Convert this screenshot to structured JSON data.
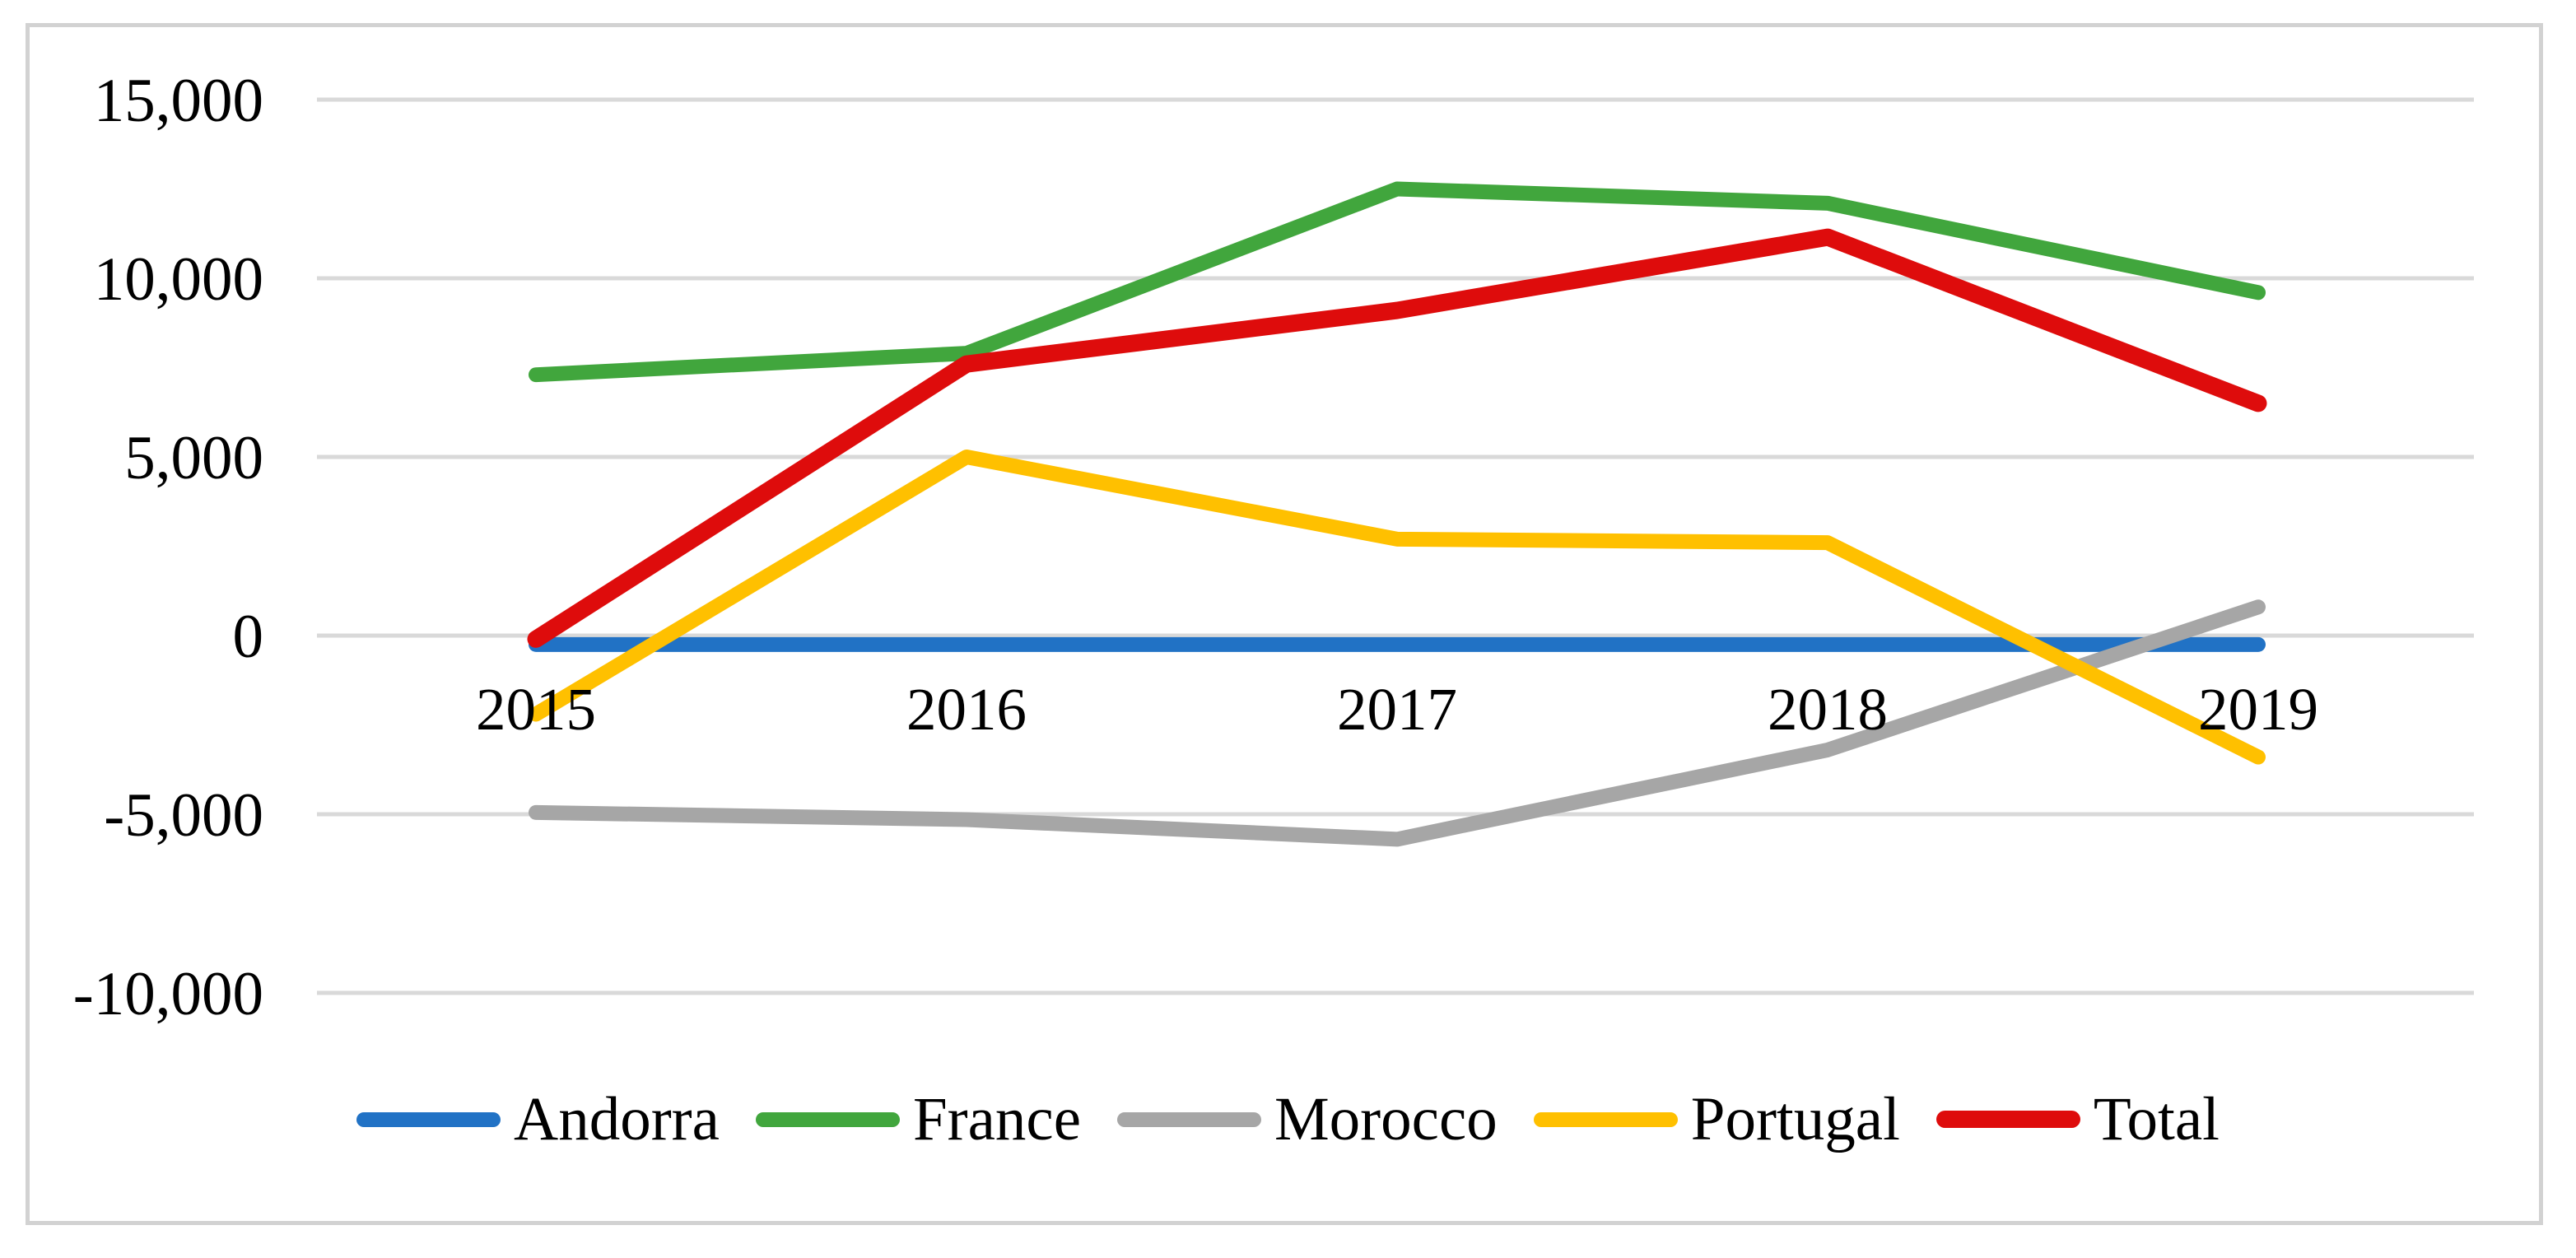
{
  "chart_data": {
    "type": "line",
    "title": "",
    "xlabel": "",
    "ylabel": "",
    "categories": [
      "2015",
      "2016",
      "2017",
      "2018",
      "2019"
    ],
    "series": [
      {
        "name": "Andorra",
        "color": "#2172c5",
        "values": [
          -250,
          -250,
          -250,
          -250,
          -250
        ]
      },
      {
        "name": "France",
        "color": "#41a63d",
        "values": [
          7300,
          7900,
          12500,
          12100,
          9600
        ]
      },
      {
        "name": "Morocco",
        "color": "#a6a6a6",
        "values": [
          -4950,
          -5150,
          -5700,
          -3200,
          800
        ]
      },
      {
        "name": "Portugal",
        "color": "#ffc000",
        "values": [
          -2200,
          5000,
          2700,
          2600,
          -3400
        ]
      },
      {
        "name": "Total",
        "color": "#de0c0c",
        "values": [
          -100,
          7600,
          9100,
          11150,
          6500
        ]
      }
    ],
    "y_ticks": [
      15000,
      10000,
      5000,
      0,
      -5000,
      -10000
    ],
    "y_tick_labels": [
      "15,000",
      "10,000",
      "5,000",
      "0",
      "-5,000",
      "-10,000"
    ],
    "ylim": [
      -10000,
      15000
    ],
    "grid": "horizontal",
    "gridline_color": "#d9d9d9",
    "legend_position": "bottom",
    "frame_border_color": "#d2d2d2",
    "text_color": "#000000"
  }
}
